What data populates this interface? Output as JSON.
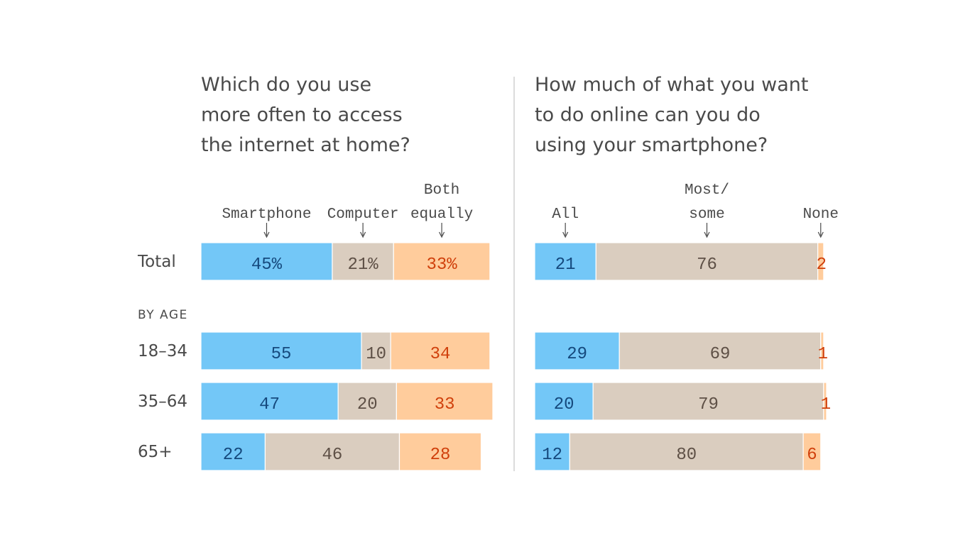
{
  "chart_data": [
    {
      "type": "bar",
      "orientation": "horizontal-stacked",
      "title_lines": [
        "Which do you use",
        "more often to access",
        "the internet at home?"
      ],
      "legend_labels": [
        [
          "Smartphone"
        ],
        [
          "Computer"
        ],
        [
          "Both",
          "equally"
        ]
      ],
      "categories": [
        "Total",
        "18-34",
        "35-64",
        "65+"
      ],
      "section_label": "BY AGE",
      "series": [
        {
          "name": "Smartphone",
          "values": [
            45,
            55,
            47,
            22
          ],
          "color": "#73c7f7",
          "text_color": "#15497d"
        },
        {
          "name": "Computer",
          "values": [
            21,
            10,
            20,
            46
          ],
          "color": "#dacdbf",
          "text_color": "#5e5046"
        },
        {
          "name": "Both equally",
          "values": [
            33,
            34,
            33,
            28
          ],
          "color": "#ffcc9c",
          "text_color": "#d0400c"
        }
      ],
      "value_labels": [
        [
          "45%",
          "21%",
          "33%"
        ],
        [
          "55",
          "10",
          "34"
        ],
        [
          "47",
          "20",
          "33"
        ],
        [
          "22",
          "46",
          "28"
        ]
      ]
    },
    {
      "type": "bar",
      "orientation": "horizontal-stacked",
      "title_lines": [
        "How much of what you want",
        "to do online can you do",
        "using your smartphone?"
      ],
      "legend_labels": [
        [
          "All"
        ],
        [
          "Most/",
          "some"
        ],
        [
          "None"
        ]
      ],
      "categories": [
        "Total",
        "18-34",
        "35-64",
        "65+"
      ],
      "series": [
        {
          "name": "All",
          "values": [
            21,
            29,
            20,
            12
          ],
          "color": "#73c7f7",
          "text_color": "#15497d"
        },
        {
          "name": "Most/some",
          "values": [
            76,
            69,
            79,
            80
          ],
          "color": "#dacdbf",
          "text_color": "#5e5046"
        },
        {
          "name": "None",
          "values": [
            2,
            1,
            1,
            6
          ],
          "color": "#ffcc9c",
          "text_color": "#d0400c"
        }
      ],
      "value_labels": [
        [
          "21",
          "76",
          "2"
        ],
        [
          "29",
          "69",
          "1"
        ],
        [
          "20",
          "79",
          "1"
        ],
        [
          "12",
          "80",
          "6"
        ]
      ]
    }
  ]
}
